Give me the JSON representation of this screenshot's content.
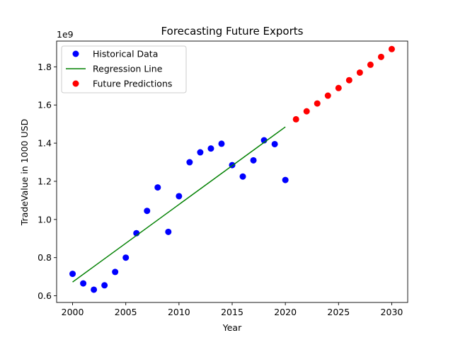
{
  "chart_data": {
    "type": "scatter",
    "title": "Forecasting Future Exports",
    "xlabel": "Year",
    "ylabel": "TradeValue in 1000 USD",
    "y_offset_text": "1e9",
    "xlim": [
      1998.5,
      2031.5
    ],
    "ylim": [
      0.565,
      1.935
    ],
    "y_scale": 1000000000,
    "xticks": [
      2000,
      2005,
      2010,
      2015,
      2020,
      2025,
      2030
    ],
    "yticks": [
      0.6,
      0.8,
      1.0,
      1.2,
      1.4,
      1.6,
      1.8
    ],
    "ytick_labels": [
      "0.6",
      "0.8",
      "1.0",
      "1.2",
      "1.4",
      "1.6",
      "1.8"
    ],
    "grid": false,
    "legend_position": "upper-left",
    "series": [
      {
        "name": "Historical Data",
        "kind": "scatter",
        "color": "#0000ff",
        "x": [
          2000,
          2001,
          2002,
          2003,
          2004,
          2005,
          2006,
          2007,
          2008,
          2009,
          2010,
          2011,
          2012,
          2013,
          2014,
          2015,
          2016,
          2017,
          2018,
          2019,
          2020
        ],
        "y": [
          0.715,
          0.665,
          0.632,
          0.655,
          0.725,
          0.8,
          0.928,
          1.045,
          1.168,
          0.935,
          1.122,
          1.3,
          1.352,
          1.372,
          1.397,
          1.285,
          1.225,
          1.31,
          1.415,
          1.395,
          1.207
        ]
      },
      {
        "name": "Regression Line",
        "kind": "line",
        "color": "#008000",
        "x": [
          2000,
          2020
        ],
        "y": [
          0.672,
          1.485
        ]
      },
      {
        "name": "Future Predictions",
        "kind": "scatter",
        "color": "#ff0000",
        "x": [
          2021,
          2022,
          2023,
          2024,
          2025,
          2026,
          2027,
          2028,
          2029,
          2030
        ],
        "y": [
          1.525,
          1.567,
          1.608,
          1.649,
          1.689,
          1.73,
          1.77,
          1.811,
          1.852,
          1.893
        ]
      }
    ]
  }
}
